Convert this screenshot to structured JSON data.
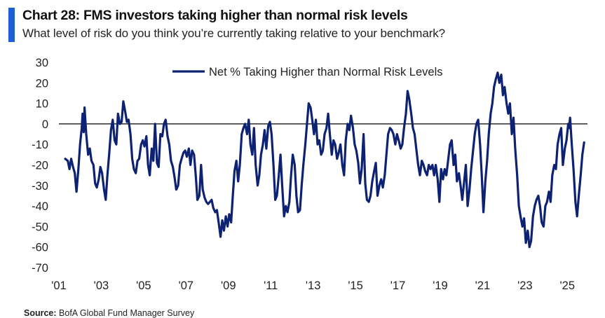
{
  "header": {
    "title": "Chart 28: FMS investors taking higher than normal risk levels",
    "subtitle": "What level of risk do you think you’re currently taking relative to your benchmark?"
  },
  "footer": {
    "source_label": "Source:",
    "source_text": "BofA Global Fund Manager Survey"
  },
  "colors": {
    "accent": "#1f5fd6",
    "series": "#0d2272",
    "zero_line": "#000000"
  },
  "chart_data": {
    "type": "line",
    "title": "Chart 28: FMS investors taking higher than normal risk levels",
    "subtitle": "What level of risk do you think you’re currently taking relative to your benchmark?",
    "xlabel": "",
    "ylabel": "",
    "xlim": [
      2001.0,
      2025.95
    ],
    "ylim": [
      -70,
      30
    ],
    "x_ticks": [
      2001,
      2003,
      2005,
      2007,
      2009,
      2011,
      2013,
      2015,
      2017,
      2019,
      2021,
      2023,
      2025
    ],
    "x_tick_labels": [
      "'01",
      "'03",
      "'05",
      "'07",
      "'09",
      "'11",
      "'13",
      "'15",
      "'17",
      "'19",
      "'21",
      "'23",
      "'25"
    ],
    "y_ticks": [
      30,
      20,
      10,
      0,
      -10,
      -20,
      -30,
      -40,
      -50,
      -60,
      -70
    ],
    "grid": false,
    "legend_position": "top-center",
    "series": [
      {
        "name": "Net % Taking Higher than Normal Risk Levels",
        "points": [
          [
            2001.3,
            -17
          ],
          [
            2001.42,
            -18
          ],
          [
            2001.5,
            -22
          ],
          [
            2001.58,
            -17
          ],
          [
            2001.67,
            -21
          ],
          [
            2001.75,
            -24
          ],
          [
            2001.83,
            -33
          ],
          [
            2001.92,
            -22
          ],
          [
            2002.0,
            -10
          ],
          [
            2002.08,
            -2
          ],
          [
            2002.12,
            5
          ],
          [
            2002.17,
            -4
          ],
          [
            2002.21,
            8
          ],
          [
            2002.29,
            -5
          ],
          [
            2002.38,
            -15
          ],
          [
            2002.46,
            -12
          ],
          [
            2002.54,
            -18
          ],
          [
            2002.63,
            -20
          ],
          [
            2002.71,
            -29
          ],
          [
            2002.79,
            -31
          ],
          [
            2002.88,
            -27
          ],
          [
            2002.96,
            -21
          ],
          [
            2003.04,
            -24
          ],
          [
            2003.13,
            -32
          ],
          [
            2003.21,
            -37
          ],
          [
            2003.29,
            -25
          ],
          [
            2003.38,
            -14
          ],
          [
            2003.46,
            -3
          ],
          [
            2003.54,
            2
          ],
          [
            2003.63,
            -8
          ],
          [
            2003.71,
            -10
          ],
          [
            2003.79,
            5
          ],
          [
            2003.88,
            0
          ],
          [
            2003.96,
            1
          ],
          [
            2004.04,
            11
          ],
          [
            2004.13,
            6
          ],
          [
            2004.21,
            1
          ],
          [
            2004.29,
            2
          ],
          [
            2004.38,
            -5
          ],
          [
            2004.46,
            -17
          ],
          [
            2004.54,
            -22
          ],
          [
            2004.63,
            -24
          ],
          [
            2004.71,
            -18
          ],
          [
            2004.79,
            -17
          ],
          [
            2004.88,
            -10
          ],
          [
            2004.96,
            -8
          ],
          [
            2005.04,
            -11
          ],
          [
            2005.13,
            -6
          ],
          [
            2005.21,
            -20
          ],
          [
            2005.29,
            -25
          ],
          [
            2005.38,
            -12
          ],
          [
            2005.46,
            -18
          ],
          [
            2005.54,
            0
          ],
          [
            2005.63,
            -19
          ],
          [
            2005.71,
            -21
          ],
          [
            2005.79,
            -5
          ],
          [
            2005.88,
            -6
          ],
          [
            2005.96,
            0
          ],
          [
            2006.04,
            2
          ],
          [
            2006.13,
            -6
          ],
          [
            2006.21,
            -10
          ],
          [
            2006.29,
            -18
          ],
          [
            2006.38,
            -21
          ],
          [
            2006.46,
            -26
          ],
          [
            2006.54,
            -32
          ],
          [
            2006.63,
            -30
          ],
          [
            2006.71,
            -20
          ],
          [
            2006.79,
            -17
          ],
          [
            2006.88,
            -14
          ],
          [
            2006.96,
            -13
          ],
          [
            2007.04,
            -16
          ],
          [
            2007.13,
            -12
          ],
          [
            2007.21,
            -20
          ],
          [
            2007.29,
            -13
          ],
          [
            2007.38,
            -15
          ],
          [
            2007.46,
            -25
          ],
          [
            2007.54,
            -37
          ],
          [
            2007.63,
            -35
          ],
          [
            2007.71,
            -20
          ],
          [
            2007.79,
            -32
          ],
          [
            2007.88,
            -36
          ],
          [
            2007.96,
            -38
          ],
          [
            2008.04,
            -39
          ],
          [
            2008.13,
            -38
          ],
          [
            2008.21,
            -37
          ],
          [
            2008.29,
            -41
          ],
          [
            2008.38,
            -43
          ],
          [
            2008.46,
            -42
          ],
          [
            2008.54,
            -48
          ],
          [
            2008.63,
            -55
          ],
          [
            2008.71,
            -47
          ],
          [
            2008.79,
            -52
          ],
          [
            2008.88,
            -45
          ],
          [
            2008.96,
            -50
          ],
          [
            2009.04,
            -44
          ],
          [
            2009.13,
            -48
          ],
          [
            2009.21,
            -35
          ],
          [
            2009.29,
            -23
          ],
          [
            2009.38,
            -18
          ],
          [
            2009.46,
            -28
          ],
          [
            2009.54,
            -20
          ],
          [
            2009.63,
            -5
          ],
          [
            2009.71,
            -2
          ],
          [
            2009.79,
            0
          ],
          [
            2009.88,
            -5
          ],
          [
            2009.96,
            2
          ],
          [
            2010.04,
            -10
          ],
          [
            2010.13,
            -15
          ],
          [
            2010.21,
            -2
          ],
          [
            2010.29,
            -20
          ],
          [
            2010.38,
            -30
          ],
          [
            2010.46,
            -25
          ],
          [
            2010.54,
            -15
          ],
          [
            2010.63,
            -10
          ],
          [
            2010.71,
            -3
          ],
          [
            2010.79,
            -12
          ],
          [
            2010.88,
            -1
          ],
          [
            2010.96,
            1
          ],
          [
            2011.04,
            -5
          ],
          [
            2011.13,
            -20
          ],
          [
            2011.21,
            -37
          ],
          [
            2011.29,
            -35
          ],
          [
            2011.38,
            -25
          ],
          [
            2011.46,
            -15
          ],
          [
            2011.54,
            -30
          ],
          [
            2011.63,
            -45
          ],
          [
            2011.71,
            -40
          ],
          [
            2011.79,
            -43
          ],
          [
            2011.88,
            -38
          ],
          [
            2011.96,
            -25
          ],
          [
            2012.04,
            -15
          ],
          [
            2012.13,
            -20
          ],
          [
            2012.21,
            -35
          ],
          [
            2012.29,
            -43
          ],
          [
            2012.38,
            -42
          ],
          [
            2012.46,
            -30
          ],
          [
            2012.54,
            -20
          ],
          [
            2012.63,
            -10
          ],
          [
            2012.71,
            0
          ],
          [
            2012.79,
            10
          ],
          [
            2012.88,
            8
          ],
          [
            2012.96,
            2
          ],
          [
            2013.04,
            -5
          ],
          [
            2013.13,
            2
          ],
          [
            2013.21,
            -10
          ],
          [
            2013.29,
            -8
          ],
          [
            2013.38,
            -15
          ],
          [
            2013.46,
            -13
          ],
          [
            2013.54,
            -5
          ],
          [
            2013.63,
            -2
          ],
          [
            2013.71,
            5
          ],
          [
            2013.79,
            -5
          ],
          [
            2013.88,
            -15
          ],
          [
            2013.96,
            -8
          ],
          [
            2014.04,
            -10
          ],
          [
            2014.13,
            -17
          ],
          [
            2014.21,
            -14
          ],
          [
            2014.29,
            -10
          ],
          [
            2014.38,
            -20
          ],
          [
            2014.46,
            -25
          ],
          [
            2014.54,
            -8
          ],
          [
            2014.63,
            0
          ],
          [
            2014.71,
            -3
          ],
          [
            2014.79,
            4
          ],
          [
            2014.88,
            -2
          ],
          [
            2014.96,
            -10
          ],
          [
            2015.04,
            -13
          ],
          [
            2015.13,
            -19
          ],
          [
            2015.21,
            -29
          ],
          [
            2015.29,
            -22
          ],
          [
            2015.38,
            -5
          ],
          [
            2015.46,
            -29
          ],
          [
            2015.54,
            -37
          ],
          [
            2015.63,
            -38
          ],
          [
            2015.71,
            -35
          ],
          [
            2015.79,
            -28
          ],
          [
            2015.88,
            -23
          ],
          [
            2015.96,
            -19
          ],
          [
            2016.04,
            -35
          ],
          [
            2016.13,
            -30
          ],
          [
            2016.21,
            -27
          ],
          [
            2016.29,
            -31
          ],
          [
            2016.38,
            -25
          ],
          [
            2016.46,
            -15
          ],
          [
            2016.54,
            -5
          ],
          [
            2016.63,
            -2
          ],
          [
            2016.71,
            -3
          ],
          [
            2016.79,
            -5
          ],
          [
            2016.88,
            -10
          ],
          [
            2016.96,
            -5
          ],
          [
            2017.04,
            -8
          ],
          [
            2017.13,
            -12
          ],
          [
            2017.21,
            -10
          ],
          [
            2017.29,
            -2
          ],
          [
            2017.38,
            5
          ],
          [
            2017.46,
            16
          ],
          [
            2017.54,
            12
          ],
          [
            2017.63,
            5
          ],
          [
            2017.71,
            -2
          ],
          [
            2017.79,
            -5
          ],
          [
            2017.88,
            -13
          ],
          [
            2017.96,
            -20
          ],
          [
            2018.04,
            -25
          ],
          [
            2018.13,
            -18
          ],
          [
            2018.21,
            -20
          ],
          [
            2018.29,
            -23
          ],
          [
            2018.38,
            -25
          ],
          [
            2018.46,
            -20
          ],
          [
            2018.54,
            -22
          ],
          [
            2018.63,
            -20
          ],
          [
            2018.71,
            -25
          ],
          [
            2018.79,
            -20
          ],
          [
            2018.88,
            -27
          ],
          [
            2018.96,
            -38
          ],
          [
            2019.04,
            -22
          ],
          [
            2019.13,
            -27
          ],
          [
            2019.21,
            -22
          ],
          [
            2019.29,
            -25
          ],
          [
            2019.38,
            -17
          ],
          [
            2019.46,
            -10
          ],
          [
            2019.54,
            -8
          ],
          [
            2019.63,
            -20
          ],
          [
            2019.71,
            -15
          ],
          [
            2019.79,
            -28
          ],
          [
            2019.88,
            -24
          ],
          [
            2019.96,
            -30
          ],
          [
            2020.04,
            -37
          ],
          [
            2020.13,
            -28
          ],
          [
            2020.21,
            -20
          ],
          [
            2020.29,
            -40
          ],
          [
            2020.38,
            -32
          ],
          [
            2020.46,
            -22
          ],
          [
            2020.54,
            -14
          ],
          [
            2020.63,
            -5
          ],
          [
            2020.71,
            0
          ],
          [
            2020.79,
            2
          ],
          [
            2020.88,
            -10
          ],
          [
            2020.96,
            -25
          ],
          [
            2021.04,
            -43
          ],
          [
            2021.13,
            -28
          ],
          [
            2021.21,
            -18
          ],
          [
            2021.29,
            -5
          ],
          [
            2021.38,
            5
          ],
          [
            2021.46,
            10
          ],
          [
            2021.54,
            18
          ],
          [
            2021.63,
            22
          ],
          [
            2021.71,
            25
          ],
          [
            2021.79,
            20
          ],
          [
            2021.88,
            24
          ],
          [
            2021.96,
            14
          ],
          [
            2022.04,
            18
          ],
          [
            2022.13,
            10
          ],
          [
            2022.21,
            5
          ],
          [
            2022.29,
            10
          ],
          [
            2022.38,
            -5
          ],
          [
            2022.46,
            3
          ],
          [
            2022.54,
            -12
          ],
          [
            2022.63,
            -25
          ],
          [
            2022.71,
            -40
          ],
          [
            2022.79,
            -45
          ],
          [
            2022.88,
            -50
          ],
          [
            2022.96,
            -46
          ],
          [
            2023.04,
            -58
          ],
          [
            2023.13,
            -52
          ],
          [
            2023.21,
            -60
          ],
          [
            2023.29,
            -57
          ],
          [
            2023.38,
            -45
          ],
          [
            2023.46,
            -40
          ],
          [
            2023.54,
            -37
          ],
          [
            2023.63,
            -35
          ],
          [
            2023.71,
            -40
          ],
          [
            2023.79,
            -48
          ],
          [
            2023.88,
            -50
          ],
          [
            2023.96,
            -40
          ],
          [
            2024.04,
            -38
          ],
          [
            2024.13,
            -33
          ],
          [
            2024.21,
            -38
          ],
          [
            2024.29,
            -25
          ],
          [
            2024.38,
            -20
          ],
          [
            2024.46,
            -22
          ],
          [
            2024.54,
            -10
          ],
          [
            2024.63,
            -5
          ],
          [
            2024.71,
            -2
          ],
          [
            2024.79,
            -20
          ],
          [
            2024.88,
            -12
          ],
          [
            2024.96,
            -8
          ],
          [
            2025.04,
            0
          ],
          [
            2025.08,
            -2
          ],
          [
            2025.13,
            3
          ],
          [
            2025.21,
            -10
          ],
          [
            2025.29,
            -22
          ],
          [
            2025.38,
            -38
          ],
          [
            2025.46,
            -45
          ],
          [
            2025.54,
            -35
          ],
          [
            2025.63,
            -25
          ],
          [
            2025.71,
            -15
          ],
          [
            2025.79,
            -9
          ]
        ]
      }
    ]
  }
}
